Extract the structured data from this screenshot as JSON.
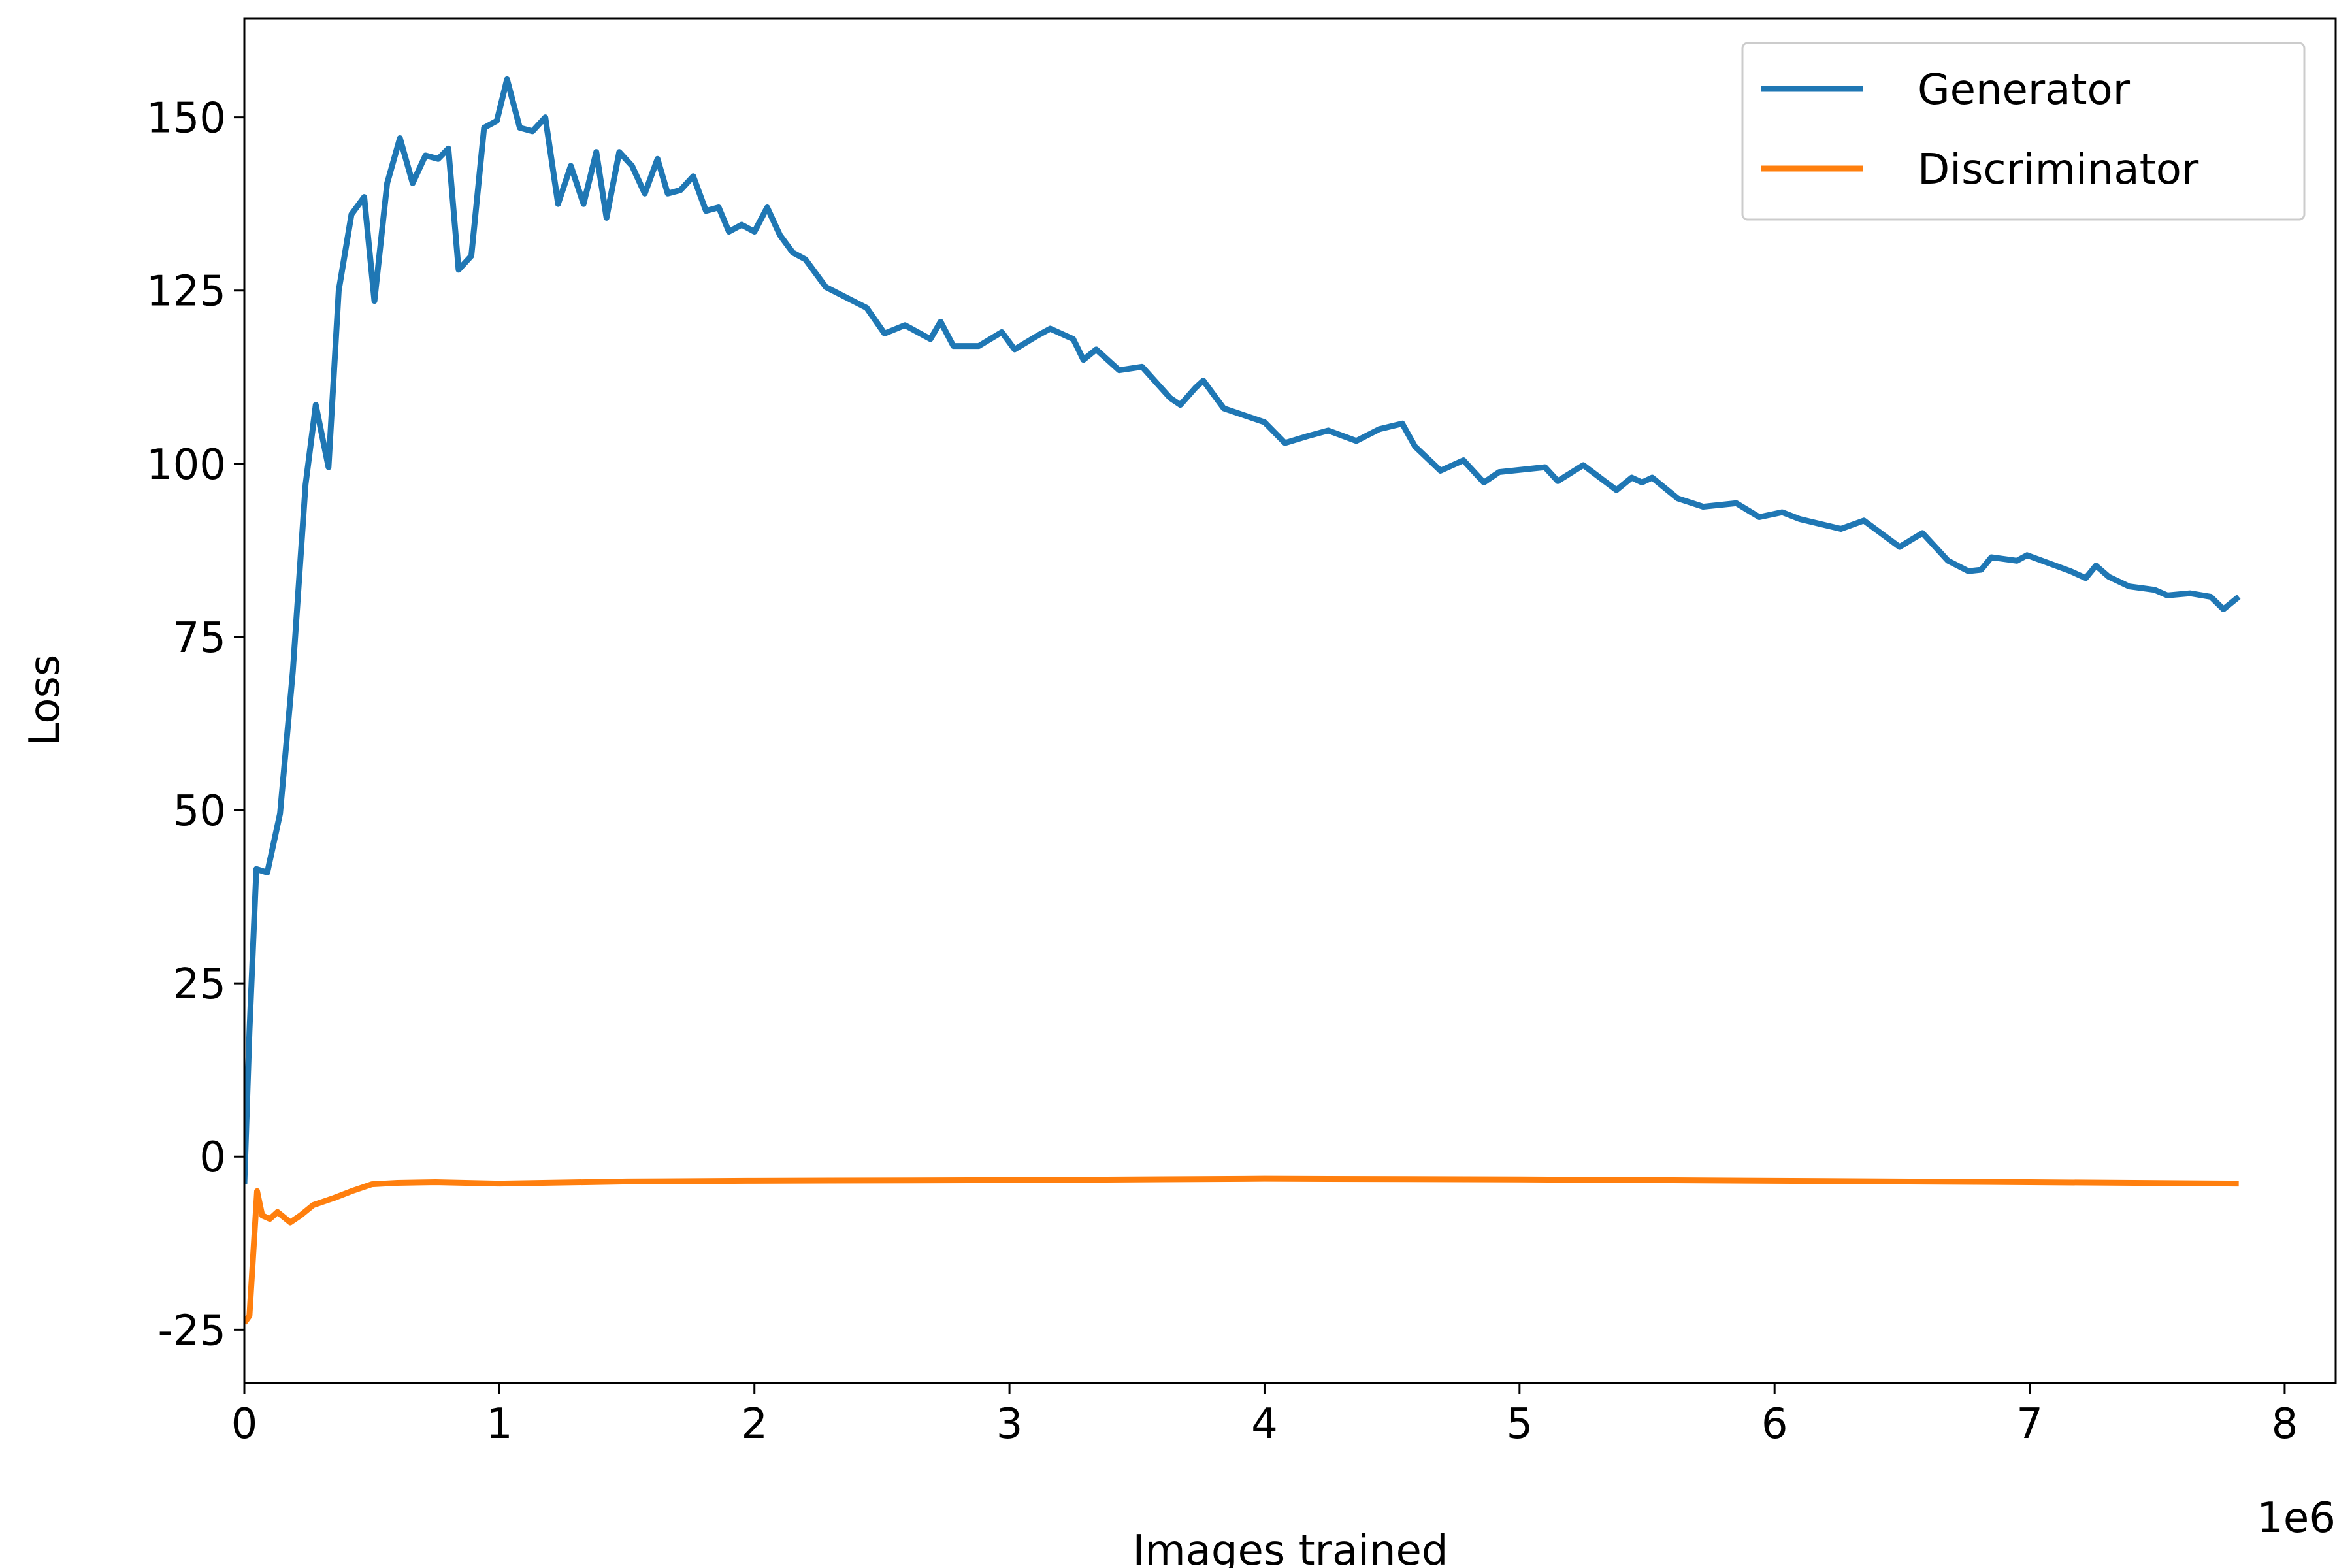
{
  "chart_data": {
    "type": "line",
    "x_label": "Images trained",
    "y_label": "Loss",
    "x_offset_label": "1e6",
    "xlim": [
      0,
      8.2
    ],
    "ylim": [
      -32.7,
      164.3
    ],
    "xticks": [
      0,
      1,
      2,
      3,
      4,
      5,
      6,
      7,
      8
    ],
    "yticks": [
      -25,
      0,
      25,
      50,
      75,
      100,
      125,
      150
    ],
    "grid": false,
    "legend": "upper right",
    "series": [
      {
        "name": "Generator",
        "color": "#1f77b4",
        "x": [
          0,
          0.02,
          0.047,
          0.09,
          0.14,
          0.19,
          0.24,
          0.28,
          0.33,
          0.37,
          0.42,
          0.47,
          0.51,
          0.56,
          0.61,
          0.66,
          0.71,
          0.76,
          0.8,
          0.84,
          0.89,
          0.94,
          0.99,
          1.03,
          1.08,
          1.13,
          1.18,
          1.23,
          1.28,
          1.33,
          1.38,
          1.42,
          1.47,
          1.52,
          1.57,
          1.62,
          1.66,
          1.71,
          1.76,
          1.81,
          1.86,
          1.9,
          1.95,
          2.0,
          2.05,
          2.1,
          2.15,
          2.2,
          2.28,
          2.44,
          2.51,
          2.59,
          2.69,
          2.73,
          2.78,
          2.88,
          2.97,
          3.02,
          3.11,
          3.16,
          3.25,
          3.29,
          3.34,
          3.43,
          3.52,
          3.63,
          3.67,
          3.73,
          3.76,
          3.84,
          3.92,
          4.0,
          4.08,
          4.17,
          4.25,
          4.36,
          4.45,
          4.54,
          4.59,
          4.69,
          4.78,
          4.86,
          4.92,
          5.1,
          5.15,
          5.25,
          5.38,
          5.44,
          5.48,
          5.52,
          5.62,
          5.72,
          5.85,
          5.94,
          6.03,
          6.1,
          6.26,
          6.35,
          6.49,
          6.58,
          6.68,
          6.76,
          6.81,
          6.85,
          6.95,
          6.99,
          7.16,
          7.22,
          7.26,
          7.31,
          7.39,
          7.49,
          7.54,
          7.63,
          7.71,
          7.76,
          7.82
        ],
        "values": [
          -4,
          18,
          41.5,
          41,
          49.5,
          70,
          97,
          108.5,
          99.5,
          125,
          136,
          138.5,
          123.5,
          140.5,
          147,
          140.5,
          144.5,
          144,
          145.5,
          128,
          130,
          148.5,
          149.5,
          155.5,
          148.5,
          148,
          150,
          137.5,
          143,
          137.5,
          145,
          135.5,
          145,
          143,
          139,
          144,
          139,
          139.5,
          141.5,
          136.5,
          137,
          133.5,
          134.5,
          133.5,
          137,
          133,
          130.5,
          129.5,
          125.5,
          122.5,
          118.8,
          120,
          118,
          120.5,
          117,
          117,
          119,
          116.5,
          118.5,
          119.5,
          118,
          115,
          116.5,
          113.5,
          114,
          109.5,
          108.5,
          111,
          112,
          108,
          107,
          106,
          103,
          104,
          104.8,
          103.3,
          105,
          105.8,
          102.5,
          99,
          100.5,
          97.3,
          98.8,
          99.5,
          97.5,
          99.8,
          96.2,
          98,
          97.3,
          98,
          95,
          93.8,
          94.3,
          92.3,
          93,
          92,
          90.6,
          91.8,
          88,
          90,
          86,
          84.5,
          84.7,
          86.5,
          86,
          86.8,
          84.5,
          83.5,
          85.3,
          83.7,
          82.3,
          81.8,
          81,
          81.3,
          80.8,
          79,
          80.8
        ]
      },
      {
        "name": "Discriminator",
        "color": "#ff7f0e",
        "x": [
          0,
          0.02,
          0.05,
          0.07,
          0.1,
          0.13,
          0.18,
          0.22,
          0.27,
          0.35,
          0.42,
          0.5,
          0.6,
          0.75,
          1.0,
          1.5,
          2.0,
          3.0,
          4.0,
          5.0,
          6.0,
          7.0,
          7.82
        ],
        "values": [
          -24,
          -23,
          -5,
          -8.5,
          -9,
          -8,
          -9.5,
          -8.5,
          -7,
          -6,
          -5,
          -4,
          -3.8,
          -3.7,
          -3.9,
          -3.6,
          -3.5,
          -3.4,
          -3.2,
          -3.3,
          -3.5,
          -3.7,
          -3.9
        ]
      }
    ]
  }
}
